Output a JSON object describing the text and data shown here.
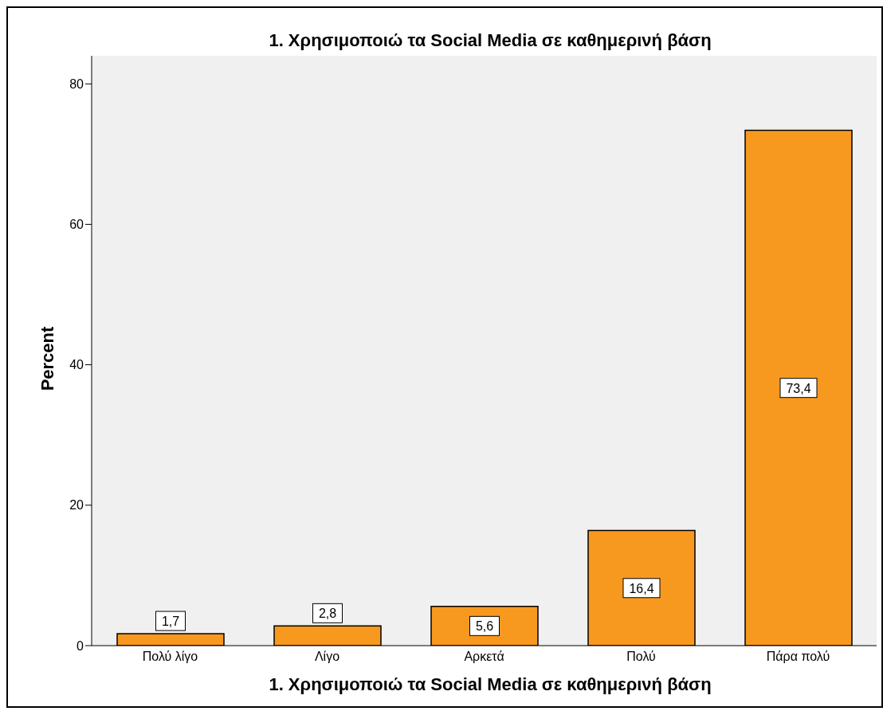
{
  "chart_data": {
    "type": "bar",
    "title": "1. Χρησιμοποιώ τα Social Media σε καθημερινή βάση",
    "xlabel": "1. Χρησιμοποιώ τα Social Media σε καθημερινή βάση",
    "ylabel": "Percent",
    "categories": [
      "Πολύ λίγο",
      "Λίγο",
      "Αρκετά",
      "Πολύ",
      "Πάρα πολύ"
    ],
    "values": [
      1.7,
      2.8,
      5.6,
      16.4,
      73.4
    ],
    "value_labels": [
      "1,7",
      "2,8",
      "5,6",
      "16,4",
      "73,4"
    ],
    "color": "#f7991f",
    "ylim": [
      0,
      84
    ],
    "yticks": [
      0,
      20,
      40,
      60,
      80
    ],
    "grid": false,
    "legend": false
  }
}
